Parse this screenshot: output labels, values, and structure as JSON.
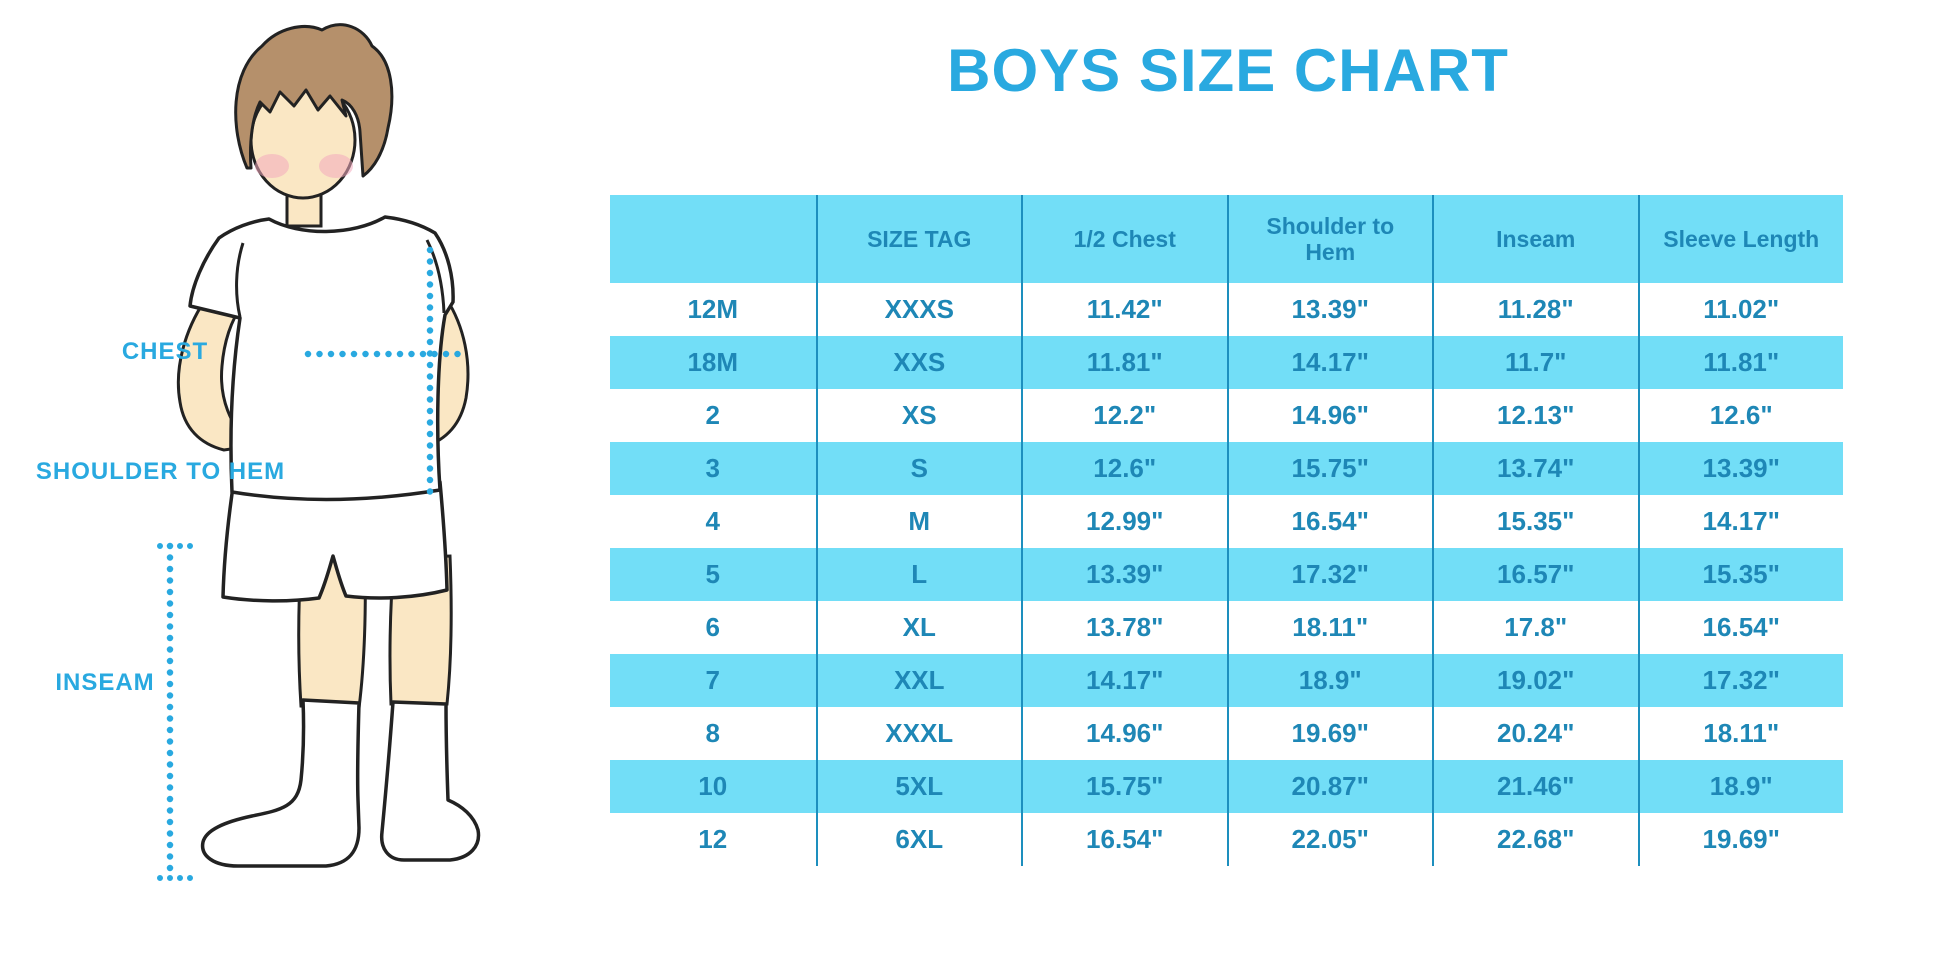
{
  "chart_data": {
    "type": "table",
    "title": "BOYS SIZE CHART",
    "columns": [
      "",
      "SIZE TAG",
      "1/2 Chest",
      "Shoulder to Hem",
      "Inseam",
      "Sleeve Length"
    ],
    "rows": [
      [
        "12M",
        "XXXS",
        "11.42\"",
        "13.39\"",
        "11.28\"",
        "11.02\""
      ],
      [
        "18M",
        "XXS",
        "11.81\"",
        "14.17\"",
        "11.7\"",
        "11.81\""
      ],
      [
        "2",
        "XS",
        "12.2\"",
        "14.96\"",
        "12.13\"",
        "12.6\""
      ],
      [
        "3",
        "S",
        "12.6\"",
        "15.75\"",
        "13.74\"",
        "13.39\""
      ],
      [
        "4",
        "M",
        "12.99\"",
        "16.54\"",
        "15.35\"",
        "14.17\""
      ],
      [
        "5",
        "L",
        "13.39\"",
        "17.32\"",
        "16.57\"",
        "15.35\""
      ],
      [
        "6",
        "XL",
        "13.78\"",
        "18.11\"",
        "17.8\"",
        "16.54\""
      ],
      [
        "7",
        "XXL",
        "14.17\"",
        "18.9\"",
        "19.02\"",
        "17.32\""
      ],
      [
        "8",
        "XXXL",
        "14.96\"",
        "19.69\"",
        "20.24\"",
        "18.11\""
      ],
      [
        "10",
        "5XL",
        "15.75\"",
        "20.87\"",
        "21.46\"",
        "18.9\""
      ],
      [
        "12",
        "6XL",
        "16.54\"",
        "22.05\"",
        "22.68\"",
        "19.69\""
      ]
    ],
    "layout": {
      "row_striping": "alternating white and light blue, header filled",
      "grid": "vertical column separators only"
    }
  },
  "diagram": {
    "labels": {
      "chest": "CHEST",
      "shoulder_to_hem": "SHOULDER TO HEM",
      "inseam": "INSEAM"
    },
    "colors": {
      "accent": "#29A9E0",
      "skin": "#FAE7C4",
      "hair": "#B5906B",
      "outline": "#222222",
      "garment": "#FFFFFF",
      "cheek": "#F3A9BE"
    }
  },
  "table": {
    "colors": {
      "row_highlight": "#72DEF7",
      "text": "#1E87B6",
      "grid_line": "#1D8FBE"
    }
  }
}
